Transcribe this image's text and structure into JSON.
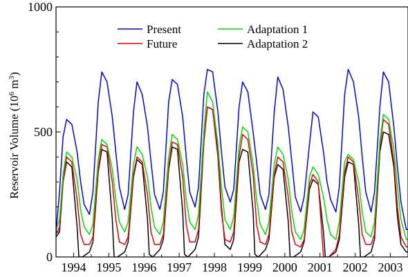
{
  "chart_data": {
    "type": "line",
    "title": "",
    "xlabel": "",
    "ylabel": "Reservoir Volume (10^6 m^3)",
    "ylabel_text": "Reservoir Volume (10",
    "ylabel_exp1": "6",
    "ylabel_mid": " m",
    "ylabel_exp2": "3",
    "ylabel_close": ")",
    "xlim": [
      1993.5,
      2003.5
    ],
    "ylim": [
      0,
      1000
    ],
    "yticks": [
      0,
      500,
      1000
    ],
    "ytick_labels": [
      "0",
      "500",
      "1000"
    ],
    "xtick_labels": [
      "1994",
      "1995",
      "1996",
      "1997",
      "1998",
      "1999",
      "2000",
      "2001",
      "2002",
      "2003"
    ],
    "xticks": [
      1994,
      1995,
      1996,
      1997,
      1998,
      1999,
      2000,
      2001,
      2002,
      2003
    ],
    "grid": false,
    "legend": "top",
    "series": [
      {
        "name": "Present",
        "color": "#0000ee",
        "x": [
          1993.5,
          1993.6,
          1993.7,
          1993.8,
          1993.95,
          1994.1,
          1994.2,
          1994.3,
          1994.45,
          1994.55,
          1994.7,
          1994.8,
          1994.95,
          1995.1,
          1995.2,
          1995.3,
          1995.45,
          1995.55,
          1995.7,
          1995.8,
          1995.95,
          1996.1,
          1996.2,
          1996.3,
          1996.45,
          1996.55,
          1996.7,
          1996.8,
          1996.95,
          1997.1,
          1997.2,
          1997.3,
          1997.45,
          1997.55,
          1997.7,
          1997.8,
          1997.95,
          1998.1,
          1998.2,
          1998.3,
          1998.45,
          1998.55,
          1998.7,
          1998.8,
          1998.95,
          1999.1,
          1999.2,
          1999.3,
          1999.45,
          1999.55,
          1999.7,
          1999.8,
          1999.95,
          2000.1,
          2000.2,
          2000.3,
          2000.45,
          2000.55,
          2000.7,
          2000.8,
          2000.95,
          2001.1,
          2001.2,
          2001.3,
          2001.45,
          2001.55,
          2001.7,
          2001.8,
          2001.95,
          2002.1,
          2002.2,
          2002.3,
          2002.45,
          2002.55,
          2002.7,
          2002.8,
          2002.95,
          2003.1,
          2003.2,
          2003.3,
          2003.45,
          2003.5
        ],
        "y": [
          100,
          260,
          480,
          550,
          530,
          420,
          300,
          210,
          170,
          260,
          620,
          740,
          700,
          560,
          420,
          280,
          190,
          250,
          580,
          700,
          650,
          520,
          380,
          250,
          190,
          260,
          620,
          710,
          690,
          560,
          400,
          260,
          200,
          280,
          650,
          750,
          740,
          580,
          420,
          280,
          220,
          270,
          600,
          700,
          660,
          500,
          380,
          250,
          190,
          250,
          580,
          720,
          670,
          520,
          380,
          240,
          180,
          240,
          450,
          580,
          560,
          420,
          300,
          230,
          180,
          280,
          650,
          750,
          700,
          560,
          400,
          260,
          180,
          260,
          600,
          740,
          700,
          520,
          360,
          220,
          110,
          110
        ]
      },
      {
        "name": "Future",
        "color": "#ee0000",
        "x": [
          1993.5,
          1993.6,
          1993.7,
          1993.8,
          1993.95,
          1994.1,
          1994.2,
          1994.3,
          1994.45,
          1994.55,
          1994.7,
          1994.8,
          1994.95,
          1995.1,
          1995.2,
          1995.3,
          1995.45,
          1995.55,
          1995.7,
          1995.8,
          1995.95,
          1996.1,
          1996.2,
          1996.3,
          1996.45,
          1996.55,
          1996.7,
          1996.8,
          1996.95,
          1997.1,
          1997.2,
          1997.3,
          1997.45,
          1997.55,
          1997.7,
          1997.8,
          1997.95,
          1998.1,
          1998.2,
          1998.3,
          1998.45,
          1998.55,
          1998.7,
          1998.8,
          1998.95,
          1999.1,
          1999.2,
          1999.3,
          1999.45,
          1999.55,
          1999.7,
          1999.8,
          1999.95,
          2000.1,
          2000.2,
          2000.3,
          2000.45,
          2000.55,
          2000.7,
          2000.8,
          2000.95,
          2001.1,
          2001.2,
          2001.25,
          2001.45,
          2001.55,
          2001.7,
          2001.8,
          2001.95,
          2002.1,
          2002.2,
          2002.3,
          2002.45,
          2002.55,
          2002.7,
          2002.8,
          2002.95,
          2003.1,
          2003.2,
          2003.3,
          2003.45,
          2003.5
        ],
        "y": [
          90,
          120,
          300,
          400,
          380,
          230,
          90,
          50,
          50,
          80,
          350,
          450,
          440,
          300,
          150,
          60,
          50,
          80,
          330,
          400,
          380,
          250,
          100,
          50,
          50,
          90,
          360,
          460,
          450,
          320,
          130,
          60,
          60,
          110,
          470,
          600,
          590,
          400,
          180,
          70,
          60,
          100,
          400,
          490,
          470,
          330,
          130,
          60,
          50,
          90,
          330,
          400,
          380,
          240,
          100,
          50,
          40,
          70,
          290,
          330,
          300,
          0,
          0,
          0,
          30,
          90,
          340,
          400,
          380,
          230,
          90,
          50,
          50,
          90,
          440,
          550,
          530,
          380,
          200,
          80,
          40,
          40
        ]
      },
      {
        "name": "Adaptation 1",
        "color": "#00dd00",
        "x": [
          1993.5,
          1993.6,
          1993.7,
          1993.8,
          1993.95,
          1994.1,
          1994.2,
          1994.3,
          1994.45,
          1994.55,
          1994.7,
          1994.8,
          1994.95,
          1995.1,
          1995.2,
          1995.3,
          1995.45,
          1995.55,
          1995.7,
          1995.8,
          1995.95,
          1996.1,
          1996.2,
          1996.3,
          1996.45,
          1996.55,
          1996.7,
          1996.8,
          1996.95,
          1997.1,
          1997.2,
          1997.3,
          1997.45,
          1997.55,
          1997.7,
          1997.8,
          1997.95,
          1998.1,
          1998.2,
          1998.3,
          1998.45,
          1998.55,
          1998.7,
          1998.8,
          1998.95,
          1999.1,
          1999.2,
          1999.3,
          1999.45,
          1999.55,
          1999.7,
          1999.8,
          1999.95,
          2000.1,
          2000.2,
          2000.3,
          2000.45,
          2000.55,
          2000.7,
          2000.8,
          2000.95,
          2001.1,
          2001.2,
          2001.3,
          2001.45,
          2001.55,
          2001.7,
          2001.8,
          2001.95,
          2002.1,
          2002.2,
          2002.3,
          2002.45,
          2002.55,
          2002.7,
          2002.8,
          2002.95,
          2003.1,
          2003.2,
          2003.3,
          2003.45,
          2003.5
        ],
        "y": [
          110,
          150,
          330,
          420,
          400,
          310,
          190,
          120,
          90,
          130,
          390,
          470,
          450,
          350,
          230,
          140,
          100,
          140,
          370,
          440,
          410,
          320,
          200,
          120,
          90,
          140,
          400,
          490,
          470,
          370,
          230,
          140,
          110,
          170,
          500,
          660,
          620,
          450,
          280,
          150,
          110,
          160,
          440,
          520,
          500,
          370,
          230,
          130,
          90,
          140,
          370,
          440,
          410,
          310,
          180,
          100,
          70,
          110,
          320,
          360,
          330,
          240,
          150,
          90,
          70,
          140,
          380,
          410,
          390,
          300,
          180,
          100,
          80,
          140,
          460,
          570,
          550,
          430,
          280,
          150,
          70,
          70
        ]
      },
      {
        "name": "Adaptation 2",
        "color": "#000000",
        "x": [
          1993.5,
          1993.6,
          1993.7,
          1993.8,
          1993.95,
          1994.1,
          1994.15,
          1994.25,
          1994.45,
          1994.55,
          1994.7,
          1994.8,
          1994.95,
          1995.1,
          1995.15,
          1995.25,
          1995.45,
          1995.55,
          1995.7,
          1995.8,
          1995.95,
          1996.1,
          1996.15,
          1996.25,
          1996.45,
          1996.55,
          1996.7,
          1996.8,
          1996.95,
          1997.1,
          1997.15,
          1997.25,
          1997.45,
          1997.55,
          1997.7,
          1997.8,
          1997.95,
          1998.1,
          1998.2,
          1998.3,
          1998.45,
          1998.55,
          1998.7,
          1998.8,
          1998.95,
          1999.1,
          1999.15,
          1999.25,
          1999.45,
          1999.55,
          1999.7,
          1999.8,
          1999.95,
          2000.1,
          2000.15,
          2000.25,
          2000.45,
          2000.55,
          2000.7,
          2000.8,
          2000.95,
          2001.1,
          2001.15,
          2001.25,
          2001.45,
          2001.55,
          2001.7,
          2001.8,
          2001.95,
          2002.1,
          2002.15,
          2002.25,
          2002.45,
          2002.55,
          2002.7,
          2002.8,
          2002.95,
          2003.1,
          2003.2,
          2003.3,
          2003.45,
          2003.5
        ],
        "y": [
          80,
          100,
          300,
          380,
          360,
          120,
          0,
          0,
          20,
          60,
          340,
          430,
          420,
          150,
          0,
          0,
          20,
          60,
          320,
          390,
          370,
          150,
          10,
          0,
          30,
          70,
          350,
          440,
          430,
          180,
          10,
          0,
          30,
          80,
          460,
          600,
          590,
          420,
          200,
          50,
          30,
          70,
          380,
          430,
          420,
          180,
          10,
          0,
          30,
          70,
          320,
          370,
          350,
          140,
          0,
          0,
          20,
          60,
          270,
          310,
          290,
          100,
          0,
          0,
          20,
          70,
          320,
          380,
          370,
          130,
          0,
          0,
          20,
          70,
          420,
          500,
          490,
          360,
          160,
          50,
          20,
          20
        ]
      }
    ]
  }
}
